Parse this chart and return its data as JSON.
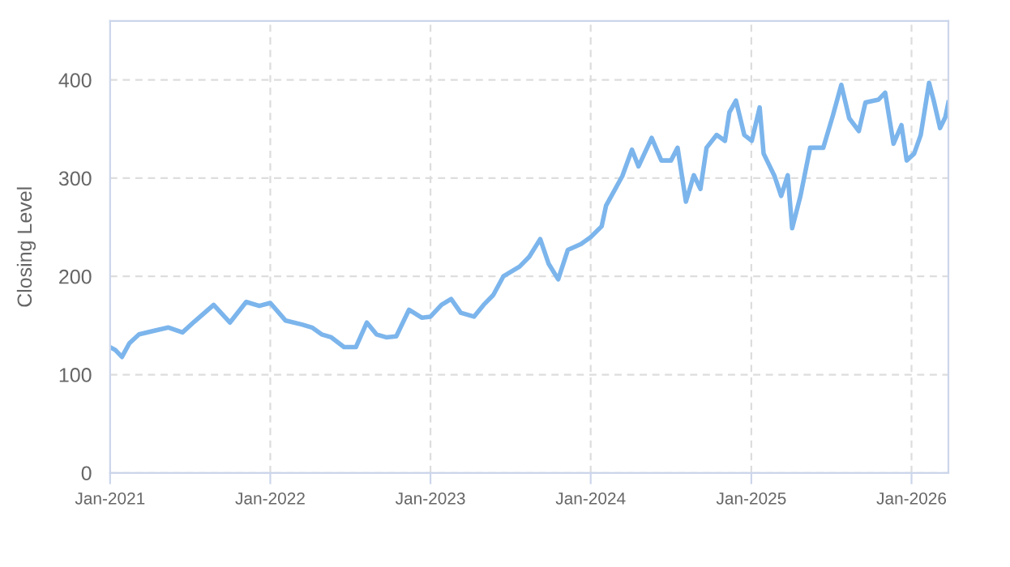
{
  "chart_data": {
    "type": "line",
    "ylabel": "Closing Level",
    "ylim": [
      0,
      460
    ],
    "yticks": [
      0,
      100,
      200,
      300,
      400
    ],
    "xlim": [
      "2021-01-01",
      "2026-03-26"
    ],
    "xticks": [
      {
        "value": "2021-01-01",
        "label": "Jan-2021"
      },
      {
        "value": "2022-01-01",
        "label": "Jan-2022"
      },
      {
        "value": "2023-01-01",
        "label": "Jan-2023"
      },
      {
        "value": "2024-01-01",
        "label": "Jan-2024"
      },
      {
        "value": "2025-01-01",
        "label": "Jan-2025"
      },
      {
        "value": "2026-01-01",
        "label": "Jan-2026"
      }
    ],
    "grid": true,
    "marker": "none",
    "line_style": "solid",
    "series": [
      {
        "color": "#7cb5ec",
        "x": [
          "2021-01-01",
          "2021-01-13",
          "2021-01-28",
          "2021-02-14",
          "2021-03-08",
          "2021-04-14",
          "2021-05-14",
          "2021-06-15",
          "2021-07-12",
          "2021-08-25",
          "2021-10-01",
          "2021-11-07",
          "2021-12-07",
          "2022-01-01",
          "2022-02-05",
          "2022-03-14",
          "2022-04-06",
          "2022-04-28",
          "2022-05-20",
          "2022-06-18",
          "2022-07-15",
          "2022-08-09",
          "2022-08-31",
          "2022-09-22",
          "2022-10-15",
          "2022-11-13",
          "2022-12-12",
          "2023-01-01",
          "2023-01-26",
          "2023-02-17",
          "2023-03-11",
          "2023-04-10",
          "2023-05-02",
          "2023-05-24",
          "2023-06-16",
          "2023-07-23",
          "2023-08-14",
          "2023-09-08",
          "2023-09-27",
          "2023-10-19",
          "2023-11-10",
          "2023-12-10",
          "2024-01-01",
          "2024-01-26",
          "2024-02-05",
          "2024-03-13",
          "2024-04-04",
          "2024-04-19",
          "2024-05-19",
          "2024-06-10",
          "2024-07-02",
          "2024-07-17",
          "2024-08-05",
          "2024-08-23",
          "2024-09-07",
          "2024-09-21",
          "2024-10-14",
          "2024-11-02",
          "2024-11-12",
          "2024-11-27",
          "2024-12-16",
          "2025-01-02",
          "2025-01-20",
          "2025-01-29",
          "2025-02-23",
          "2025-03-10",
          "2025-03-25",
          "2025-04-04",
          "2025-04-23",
          "2025-05-15",
          "2025-06-14",
          "2025-07-06",
          "2025-07-25",
          "2025-08-12",
          "2025-09-03",
          "2025-09-18",
          "2025-10-18",
          "2025-11-02",
          "2025-11-21",
          "2025-12-09",
          "2025-12-21",
          "2026-01-07",
          "2026-01-22",
          "2026-02-10",
          "2026-02-20",
          "2026-03-07",
          "2026-03-19",
          "2026-03-26"
        ],
        "values": [
          128,
          125,
          118,
          132,
          141,
          145,
          148,
          143,
          154,
          171,
          153,
          174,
          170,
          173,
          155,
          151,
          148,
          141,
          138,
          128,
          128,
          153,
          141,
          138,
          139,
          166,
          158,
          159,
          171,
          177,
          163,
          159,
          171,
          181,
          200,
          210,
          220,
          238,
          213,
          197,
          227,
          233,
          240,
          251,
          272,
          302,
          329,
          312,
          341,
          318,
          318,
          331,
          276,
          303,
          289,
          331,
          344,
          338,
          367,
          379,
          344,
          338,
          372,
          325,
          302,
          282,
          303,
          249,
          282,
          331,
          331,
          364,
          395,
          361,
          348,
          377,
          380,
          387,
          335,
          354,
          318,
          325,
          344,
          397,
          380,
          351,
          362,
          377
        ]
      }
    ]
  }
}
